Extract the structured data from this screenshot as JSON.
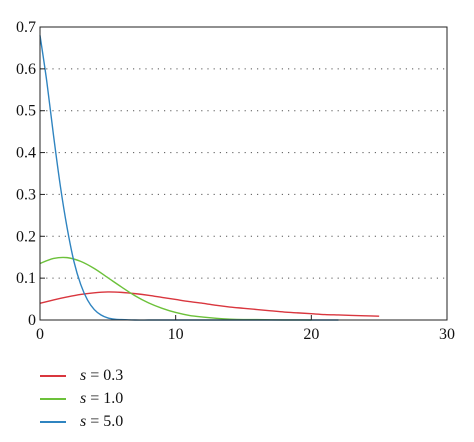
{
  "chart_data": {
    "type": "line",
    "title": "",
    "xlabel": "",
    "ylabel": "",
    "xlim": [
      0,
      30
    ],
    "ylim": [
      0,
      0.7
    ],
    "x_ticks": [
      0,
      10,
      20,
      30
    ],
    "y_ticks": [
      0,
      0.1,
      0.2,
      0.3,
      0.4,
      0.5,
      0.6,
      0.7
    ],
    "x_tick_labels": [
      "0",
      "10",
      "20",
      "30"
    ],
    "y_tick_labels": [
      "0",
      "0.1",
      "0.2",
      "0.3",
      "0.4",
      "0.5",
      "0.6",
      "0.7"
    ],
    "grid": "horizontal dotted",
    "legend_position": "below",
    "series": [
      {
        "name": "s = 0.3",
        "color": "#d9363e",
        "x": [
          0,
          1,
          2,
          3,
          4,
          5,
          6,
          7,
          8,
          9,
          10,
          11,
          12,
          13,
          14,
          15,
          16,
          17,
          18,
          19,
          20,
          21,
          22,
          23,
          24,
          25
        ],
        "y": [
          0.04,
          0.048,
          0.055,
          0.061,
          0.065,
          0.067,
          0.066,
          0.063,
          0.059,
          0.054,
          0.049,
          0.044,
          0.04,
          0.035,
          0.031,
          0.028,
          0.025,
          0.022,
          0.019,
          0.017,
          0.015,
          0.013,
          0.012,
          0.011,
          0.01,
          0.009
        ]
      },
      {
        "name": "s = 1.0",
        "color": "#6cc13a",
        "x": [
          0,
          1,
          2,
          3,
          4,
          5,
          6,
          7,
          8,
          9,
          10,
          11,
          12,
          13,
          14,
          15,
          16,
          17,
          18,
          19,
          20
        ],
        "y": [
          0.135,
          0.147,
          0.149,
          0.14,
          0.123,
          0.101,
          0.079,
          0.058,
          0.041,
          0.028,
          0.018,
          0.011,
          0.007,
          0.004,
          0.002,
          0.001,
          0.001,
          0.0005,
          0.0002,
          0.0001,
          0.0
        ]
      },
      {
        "name": "s = 5.0",
        "color": "#2f84c0",
        "x": [
          0,
          0.5,
          1,
          1.5,
          2,
          2.5,
          3,
          3.5,
          4,
          4.5,
          5,
          5.5,
          6,
          7,
          8,
          9,
          10,
          12,
          14,
          16,
          18,
          20,
          22
        ],
        "y": [
          0.68,
          0.57,
          0.44,
          0.32,
          0.22,
          0.14,
          0.085,
          0.048,
          0.025,
          0.012,
          0.005,
          0.002,
          0.001,
          0.0,
          0.0,
          0.0,
          0.0,
          0.0,
          0.0,
          0.0,
          0.0,
          0.0,
          0.0
        ]
      }
    ]
  }
}
